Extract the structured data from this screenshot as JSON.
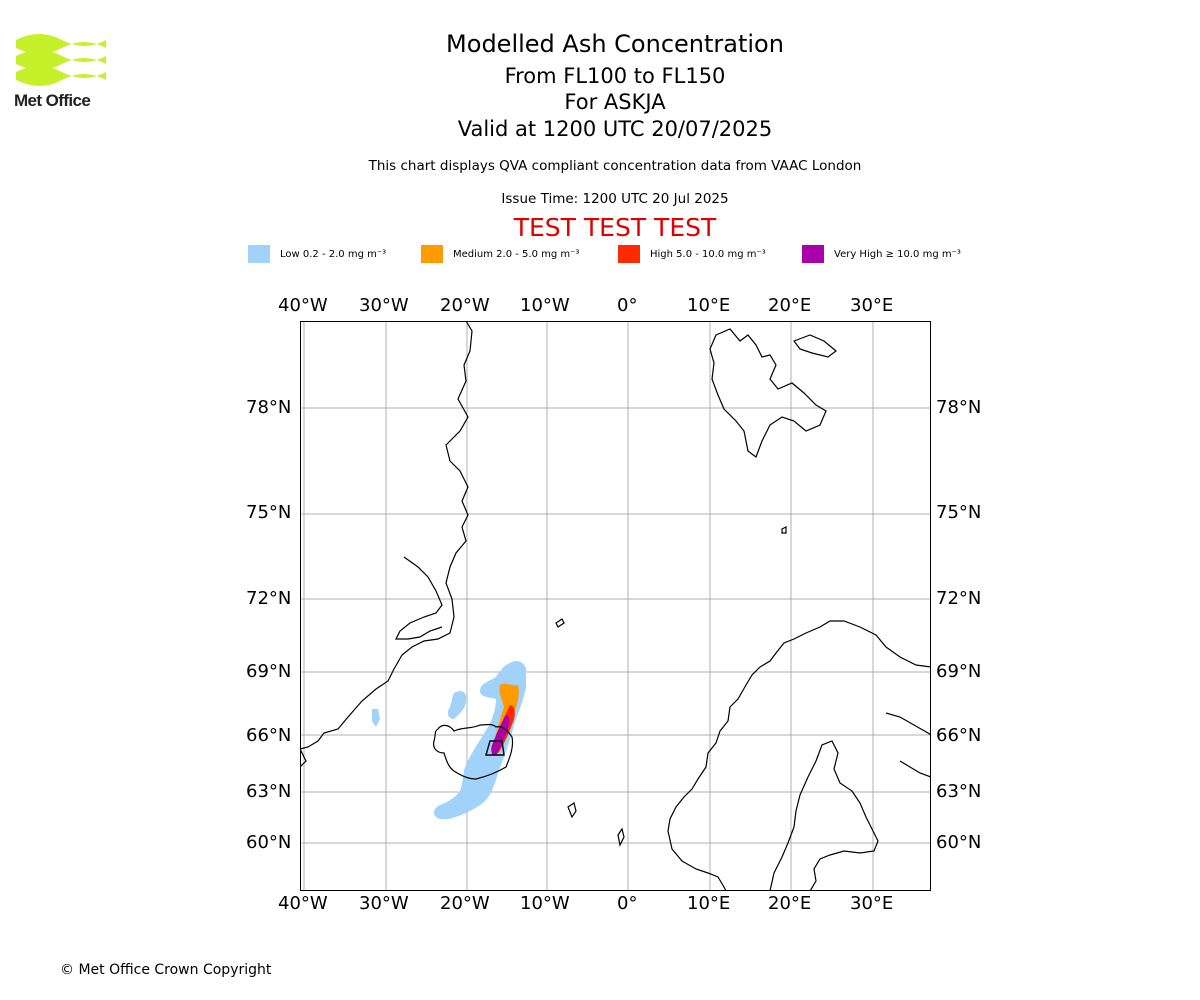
{
  "logo": {
    "text": "Met Office"
  },
  "header": {
    "title": "Modelled Ash Concentration",
    "levels": "From FL100 to FL150",
    "volcano": "For ASKJA",
    "valid": "Valid at 1200 UTC 20/07/2025",
    "description": "This chart displays QVA compliant concentration data from VAAC London",
    "issue_time": "Issue Time: 1200 UTC 20 Jul 2025",
    "test_banner": "TEST TEST TEST"
  },
  "legend": [
    {
      "label": "Low 0.2 - 2.0 mg m⁻³",
      "color": "#a0d2fa"
    },
    {
      "label": "Medium 2.0 - 5.0 mg m⁻³",
      "color": "#ff9a00"
    },
    {
      "label": "High 5.0 - 10.0 mg m⁻³",
      "color": "#ff2a00"
    },
    {
      "label": "Very High ≥ 10.0 mg m⁻³",
      "color": "#aa00aa"
    }
  ],
  "map": {
    "lon_labels": [
      "40°W",
      "30°W",
      "20°W",
      "10°W",
      "0°",
      "10°E",
      "20°E",
      "30°E"
    ],
    "lat_labels": [
      "78°N",
      "75°N",
      "72°N",
      "69°N",
      "66°N",
      "63°N",
      "60°N"
    ],
    "colors": {
      "grid": "#b0b0b0",
      "coast": "#000000"
    }
  },
  "footer": {
    "copyright": "© Met Office Crown Copyright"
  }
}
